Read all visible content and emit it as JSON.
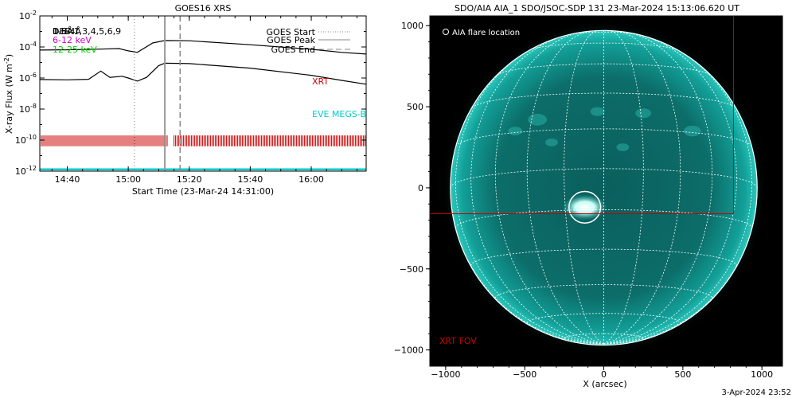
{
  "goes_panel": {
    "title": "GOES16 XRS",
    "ylabel": "X-ray Flux (W m",
    "ylabel_sup": "-2",
    "ylabel_close": ")",
    "xlabel": "Start Time (23-Mar-24 14:31:00)",
    "legend_lines": [
      {
        "text": "GOES Start",
        "style": "dotted"
      },
      {
        "text": "GOES Peak",
        "style": "solid"
      },
      {
        "text": "GOES End",
        "style": "dashed"
      }
    ],
    "channel_labels": [
      {
        "text": "1-8Å",
        "color": "#000000"
      },
      {
        "text": "0.5-4Å",
        "color": "#000000"
      },
      {
        "text": "6-12 keV",
        "color": "#cc00cc"
      },
      {
        "text": "12-25 keV",
        "color": "#00cc00"
      }
    ],
    "overlay_label": "DEB:1,3,4,5,6,9",
    "xrt_label": "XRT",
    "eve_label": "EVE MEGS-B",
    "colors": {
      "xrt": "#cc0000",
      "eve": "#00cccc",
      "flux": "#000000"
    }
  },
  "aia_panel": {
    "title": "SDO/AIA AIA_1 SDO/JSOC-SDP 131 23-Mar-2024 15:13:06.620 UT",
    "legend": "AIA flare location",
    "xlabel": "X (arcsec)",
    "xrt_fov_label": "XRT FOV",
    "colors": {
      "disk": "#0f9e96",
      "grid": "#ffffff",
      "fov": "#cc0000"
    }
  },
  "footer": {
    "timestamp": "3-Apr-2024 23:52"
  },
  "chart_data": [
    {
      "type": "line",
      "title": "GOES16 XRS",
      "xlabel": "Start Time (23-Mar-24 14:31:00)",
      "ylabel": "X-ray Flux (W m^-2)",
      "y_scale": "log",
      "xlim": [
        "14:31",
        "16:18"
      ],
      "ylim": [
        1e-12,
        0.01
      ],
      "xticks": [
        "14:40",
        "15:00",
        "15:20",
        "15:40",
        "16:00"
      ],
      "yticks": [
        {
          "value": 1e-12,
          "label": "10",
          "exp": "-12"
        },
        {
          "value": 1e-10,
          "label": "10",
          "exp": "-10"
        },
        {
          "value": 1e-08,
          "label": "10",
          "exp": "-8"
        },
        {
          "value": 1e-06,
          "label": "10",
          "exp": "-6"
        },
        {
          "value": 0.0001,
          "label": "10",
          "exp": "-4"
        },
        {
          "value": 0.01,
          "label": "10",
          "exp": "-2"
        }
      ],
      "vlines": [
        {
          "name": "GOES Start",
          "x": "15:02",
          "style": "dotted"
        },
        {
          "name": "GOES Peak",
          "x": "15:12",
          "style": "solid"
        },
        {
          "name": "GOES End",
          "x": "15:17",
          "style": "dashed"
        }
      ],
      "series": [
        {
          "name": "1-8Å",
          "x": [
            "14:31",
            "14:40",
            "14:50",
            "14:57",
            "15:00",
            "15:03",
            "15:08",
            "15:12",
            "15:20",
            "15:40",
            "16:00",
            "16:10",
            "16:18"
          ],
          "values": [
            6.3e-05,
            6.6e-05,
            7.2e-05,
            7.9e-05,
            5.6e-05,
            4.5e-05,
            0.00018,
            0.00026,
            0.00025,
            0.00014,
            7.1e-05,
            4.5e-05,
            3.5e-05
          ]
        },
        {
          "name": "0.5-4Å",
          "x": [
            "14:31",
            "14:40",
            "14:47",
            "14:51",
            "14:54",
            "14:58",
            "15:00",
            "15:03",
            "15:06",
            "15:10",
            "15:12",
            "15:20",
            "15:40",
            "16:00",
            "16:10",
            "16:18"
          ],
          "values": [
            8e-07,
            7.6e-07,
            8.3e-07,
            2.8e-06,
            1.1e-06,
            1.3e-06,
            1e-06,
            6.3e-07,
            1.1e-06,
            6.3e-06,
            9e-06,
            8.5e-06,
            4.3e-06,
            1.5e-06,
            7e-07,
            4e-07
          ]
        }
      ],
      "xrt_ranges": [
        [
          "14:31",
          "15:13"
        ],
        [
          "15:15",
          "16:18"
        ]
      ],
      "xrt_gap": [
        "15:13",
        "15:15"
      ],
      "eve_level": 1.3e-12
    },
    {
      "type": "image",
      "title": "SDO/AIA AIA_1 SDO/JSOC-SDP 131 23-Mar-2024 15:13:06.620 UT",
      "xlabel": "X (arcsec)",
      "xlim": [
        -1100,
        1130
      ],
      "ylim": [
        -1100,
        1060
      ],
      "xticks": [
        -1000,
        -500,
        0,
        500,
        1000
      ],
      "yticks": [
        1000,
        500,
        0,
        -500,
        -1000
      ],
      "solar_radius_arcsec": 970,
      "flare_location": {
        "x": -120,
        "y": -120,
        "radius": 100
      },
      "xrt_fov": {
        "x_range": [
          -1100,
          820
        ],
        "y_range": [
          -160,
          1060
        ]
      }
    }
  ]
}
